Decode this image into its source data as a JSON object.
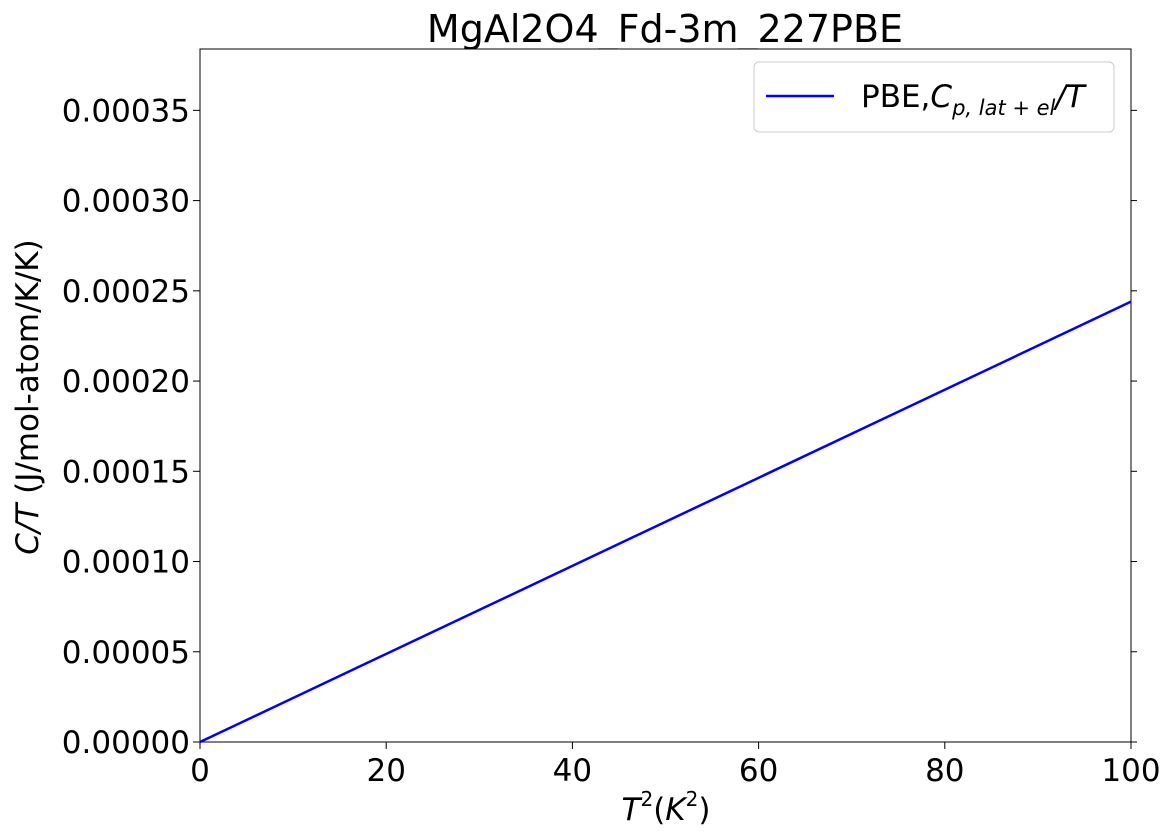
{
  "chart_data": {
    "type": "line",
    "title": "MgAl2O4_Fd-3m_227PBE",
    "xlabel": {
      "base": "T",
      "sup": "2",
      "paren_open": "(",
      "unit_base": "K",
      "unit_sup": "2",
      "paren_close": ")"
    },
    "ylabel": {
      "italic": "C/T",
      "rest": " (J/mol-atom/K/K)"
    },
    "xlim": [
      0,
      100
    ],
    "ylim": [
      0,
      0.000384
    ],
    "xticks": [
      0,
      20,
      40,
      60,
      80,
      100
    ],
    "xtick_labels": [
      "0",
      "20",
      "40",
      "60",
      "80",
      "100"
    ],
    "yticks": [
      0,
      5e-05,
      0.0001,
      0.00015,
      0.0002,
      0.00025,
      0.0003,
      0.00035
    ],
    "ytick_labels": [
      "0.00000",
      "0.00005",
      "0.00010",
      "0.00015",
      "0.00020",
      "0.00025",
      "0.00030",
      "0.00035"
    ],
    "grid": false,
    "legend_position": "top-right",
    "series": [
      {
        "name": "PBE,Cp,lat+el/T",
        "legend": {
          "prefix": "PBE,",
          "italic": "C",
          "sub": "p, lat + el",
          "suffix": "/T"
        },
        "color": "#0000ff",
        "x": [
          0,
          100
        ],
        "y": [
          0,
          0.000244
        ]
      }
    ]
  }
}
